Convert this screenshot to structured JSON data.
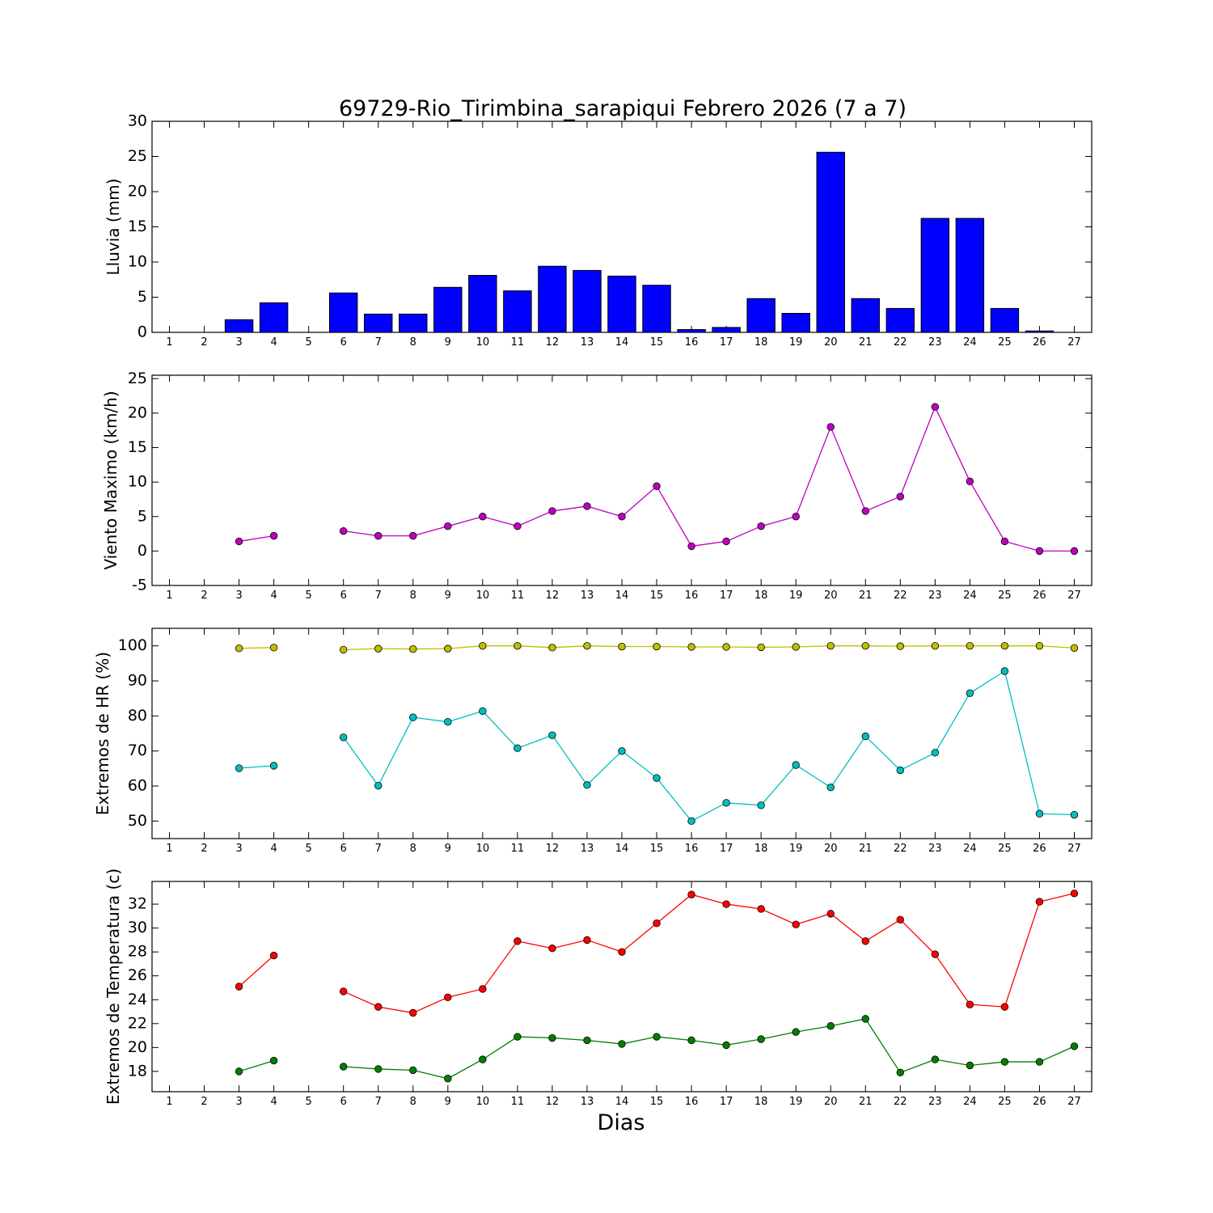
{
  "title": "69729-Rio_Tirimbina_sarapiqui Febrero 2026  (7 a 7)",
  "xlabel": "Dias",
  "chart_data": [
    {
      "type": "bar",
      "ylabel": "Lluvia (mm)",
      "ylim": [
        0,
        30
      ],
      "yticks": [
        0,
        5,
        10,
        15,
        20,
        25,
        30
      ],
      "x": [
        1,
        2,
        3,
        4,
        5,
        6,
        7,
        8,
        9,
        10,
        11,
        12,
        13,
        14,
        15,
        16,
        17,
        18,
        19,
        20,
        21,
        22,
        23,
        24,
        25,
        26,
        27
      ],
      "series": [
        {
          "color": "#0000ff",
          "values": [
            0,
            0,
            1.8,
            4.2,
            0,
            5.6,
            2.6,
            2.6,
            6.4,
            8.1,
            5.9,
            9.4,
            8.8,
            8.0,
            6.7,
            0.4,
            0.7,
            4.8,
            2.7,
            25.6,
            4.8,
            3.4,
            16.2,
            16.2,
            3.4,
            0.2,
            0
          ]
        }
      ]
    },
    {
      "type": "line",
      "ylabel": "Viento Maximo (km/h)",
      "ylim": [
        -5,
        25.5
      ],
      "yticks": [
        -5,
        0,
        5,
        10,
        15,
        20,
        25
      ],
      "x": [
        1,
        2,
        3,
        4,
        5,
        6,
        7,
        8,
        9,
        10,
        11,
        12,
        13,
        14,
        15,
        16,
        17,
        18,
        19,
        20,
        21,
        22,
        23,
        24,
        25,
        26,
        27
      ],
      "series": [
        {
          "color": "#bf00bf",
          "values": [
            null,
            null,
            1.4,
            2.2,
            null,
            2.9,
            2.2,
            2.2,
            3.6,
            5.0,
            3.6,
            5.8,
            6.5,
            5.0,
            9.4,
            0.7,
            1.4,
            3.6,
            5.0,
            18.0,
            5.8,
            7.9,
            20.9,
            10.1,
            1.4,
            0,
            0
          ]
        }
      ]
    },
    {
      "type": "line",
      "ylabel": "Extremos de HR (%)",
      "ylim": [
        45,
        105
      ],
      "yticks": [
        50,
        60,
        70,
        80,
        90,
        100
      ],
      "x": [
        1,
        2,
        3,
        4,
        5,
        6,
        7,
        8,
        9,
        10,
        11,
        12,
        13,
        14,
        15,
        16,
        17,
        18,
        19,
        20,
        21,
        22,
        23,
        24,
        25,
        26,
        27
      ],
      "series": [
        {
          "color": "#bfbf00",
          "values": [
            null,
            null,
            99.3,
            99.5,
            null,
            98.9,
            99.2,
            99.1,
            99.2,
            100,
            100,
            99.5,
            100,
            99.8,
            99.8,
            99.7,
            99.7,
            99.6,
            99.7,
            100,
            100,
            99.9,
            100,
            100,
            100,
            100,
            99.4
          ]
        },
        {
          "color": "#00bfbf",
          "values": [
            null,
            null,
            65.1,
            65.8,
            null,
            73.9,
            60.1,
            79.6,
            78.3,
            81.4,
            70.8,
            74.5,
            60.3,
            70.0,
            62.3,
            50.0,
            55.2,
            54.5,
            66.0,
            59.6,
            74.2,
            64.5,
            69.5,
            86.5,
            92.8,
            52.1,
            51.8
          ]
        }
      ]
    },
    {
      "type": "line",
      "ylabel": "Extremos de Temperatura (c)",
      "ylim": [
        16.3,
        33.9
      ],
      "yticks": [
        18,
        20,
        22,
        24,
        26,
        28,
        30,
        32
      ],
      "x": [
        1,
        2,
        3,
        4,
        5,
        6,
        7,
        8,
        9,
        10,
        11,
        12,
        13,
        14,
        15,
        16,
        17,
        18,
        19,
        20,
        21,
        22,
        23,
        24,
        25,
        26,
        27
      ],
      "series": [
        {
          "color": "#ff0000",
          "values": [
            null,
            null,
            25.1,
            27.7,
            null,
            24.7,
            23.4,
            22.9,
            24.2,
            24.9,
            28.9,
            28.3,
            29.0,
            28.0,
            30.4,
            32.8,
            32.0,
            31.6,
            30.3,
            31.2,
            28.9,
            30.7,
            27.8,
            23.6,
            23.4,
            32.2,
            32.9
          ]
        },
        {
          "color": "#007f00",
          "values": [
            null,
            null,
            18.0,
            18.9,
            null,
            18.4,
            18.2,
            18.1,
            17.4,
            19.0,
            20.9,
            20.8,
            20.6,
            20.3,
            20.9,
            20.6,
            20.2,
            20.7,
            21.3,
            21.8,
            22.4,
            17.9,
            19.0,
            18.5,
            18.8,
            18.8,
            20.1
          ]
        }
      ]
    }
  ]
}
